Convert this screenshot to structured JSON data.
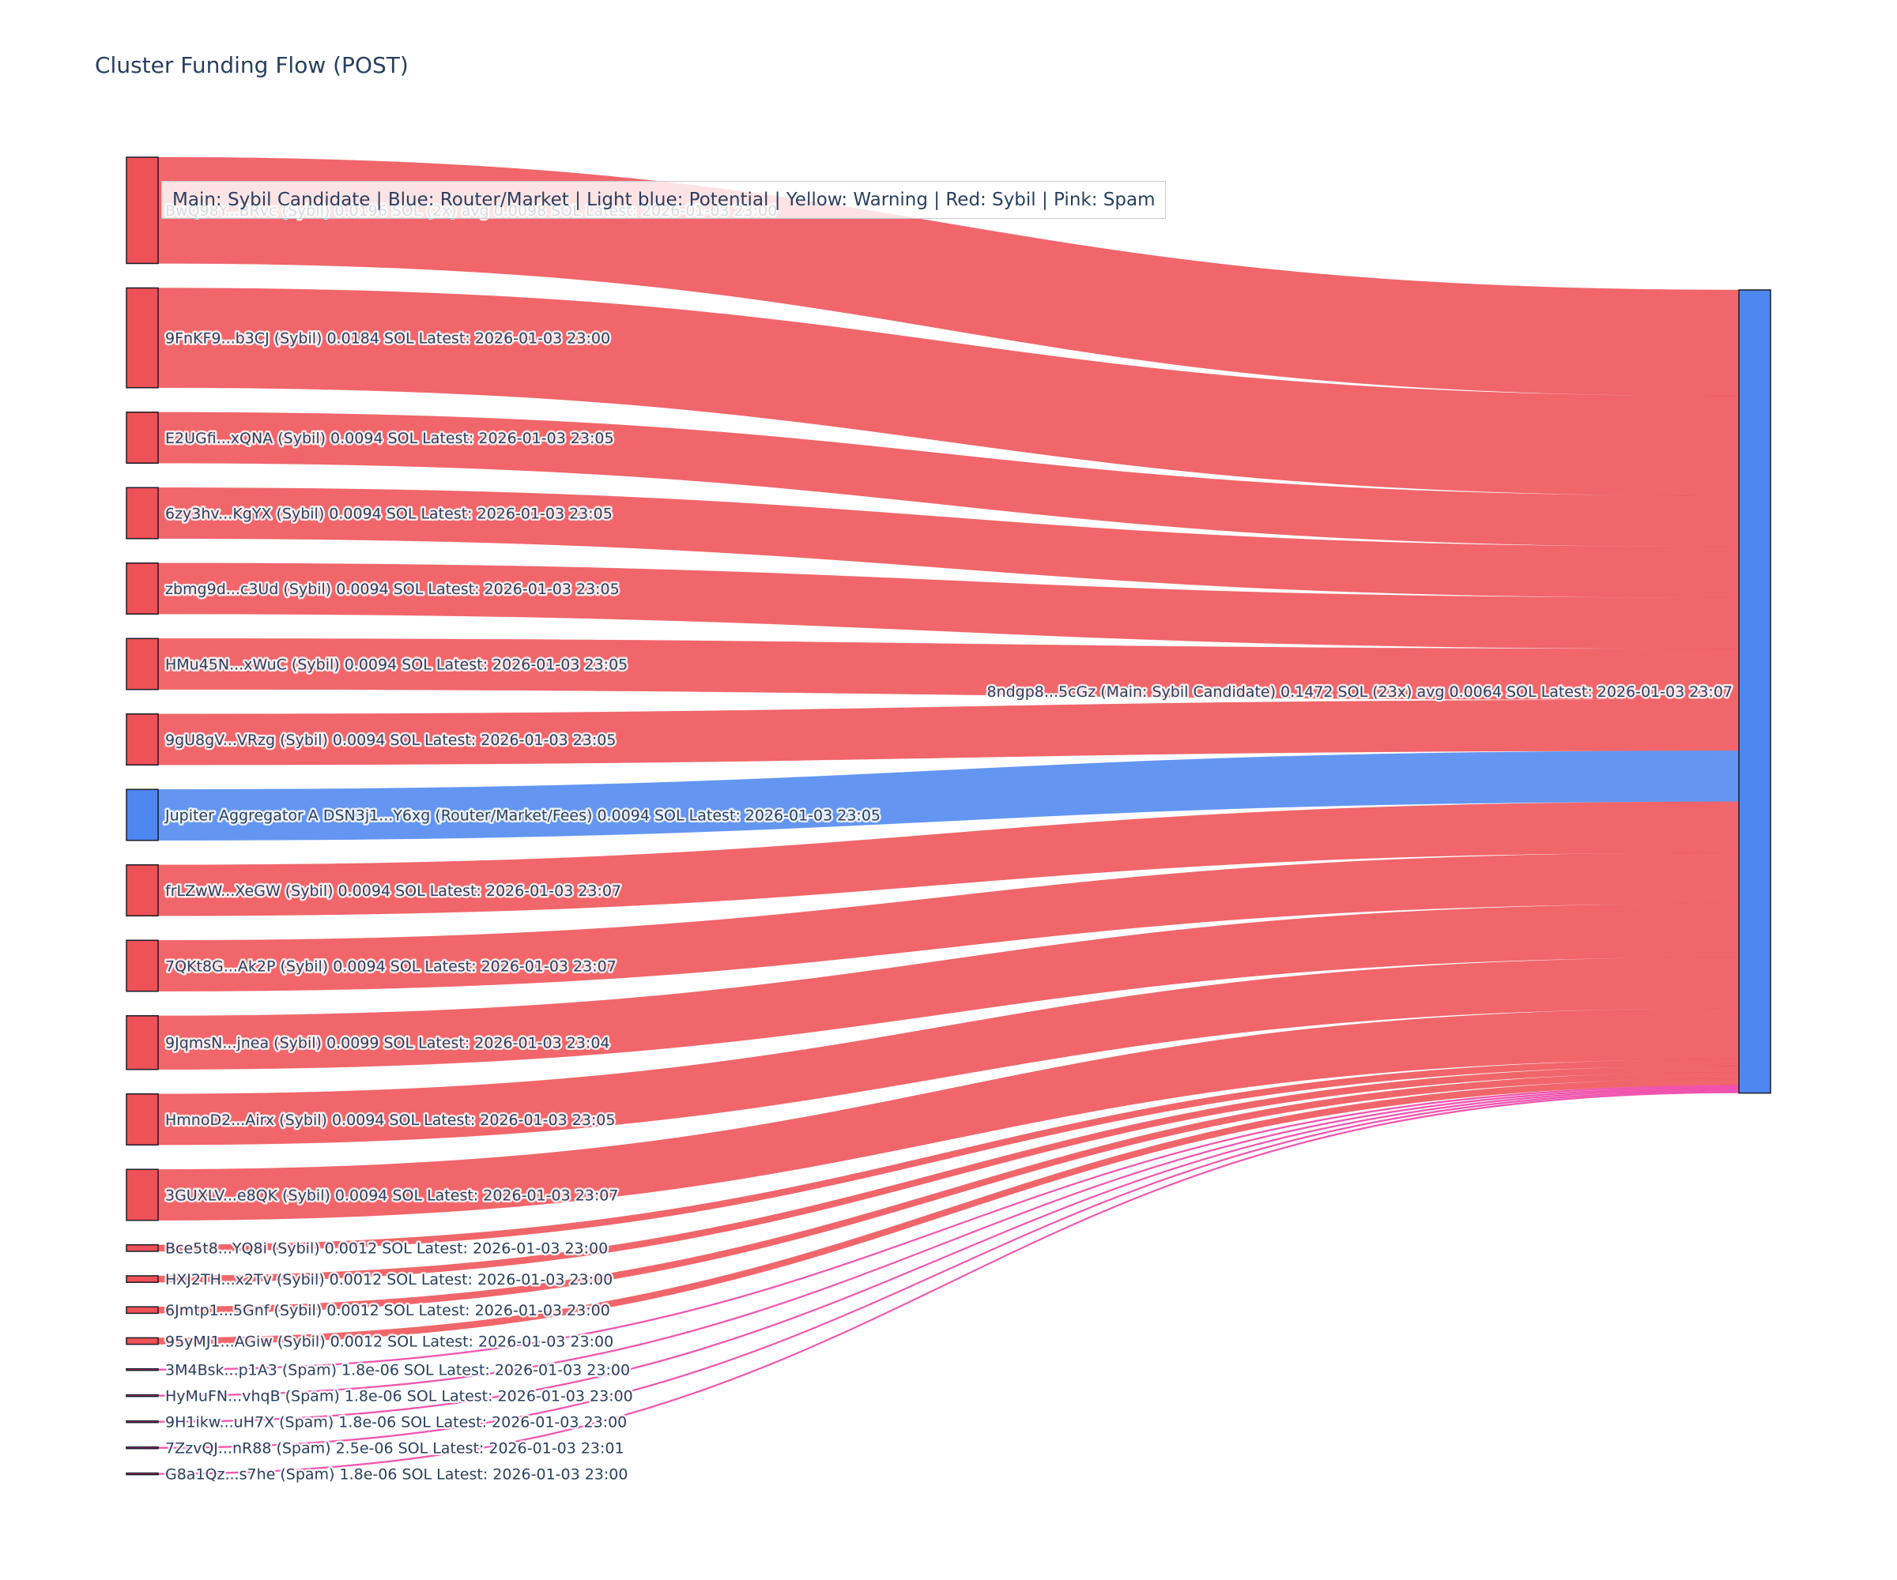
{
  "title": "Cluster Funding Flow (POST)",
  "legend_note": "Main: Sybil Candidate  |  Blue: Router/Market | Light blue: Potential | Yellow: Warning | Red: Sybil | Pink: Spam",
  "colors": {
    "sybil": "#ee5157",
    "router": "#4e87ef",
    "main": "#4e87ef",
    "spam": "#ee3da4",
    "node_border": "#1c1c27",
    "label_text": "#2a3f5f",
    "label_halo": "rgba(255,255,255,0.85)"
  },
  "chart_data": {
    "type": "sankey",
    "unit": "SOL",
    "orientation": "left-to-right",
    "target": {
      "label": "8ndgp8...5cGz (Main: Sybil Candidate) 0.1472 SOL (23x) avg 0.0064 SOL Latest: 2026-01-03 23:07",
      "id": "8ndgp8...5cGz",
      "category": "main",
      "value": 0.1472,
      "tx_count": "23x",
      "avg": "0.0064 SOL",
      "latest": "2026-01-03 23:07"
    },
    "sources": [
      {
        "label": "BwQ98Y...BRvc (Sybil) 0.0196 SOL (2x) avg 0.0098 SOL Latest: 2026-01-03 23:00",
        "category": "sybil",
        "value": 0.0196
      },
      {
        "label": "9FnKF9...b3CJ (Sybil) 0.0184 SOL Latest: 2026-01-03 23:00",
        "category": "sybil",
        "value": 0.0184
      },
      {
        "label": "E2UGfi...xQNA (Sybil) 0.0094 SOL Latest: 2026-01-03 23:05",
        "category": "sybil",
        "value": 0.0094
      },
      {
        "label": "6zy3hv...KgYX (Sybil) 0.0094 SOL Latest: 2026-01-03 23:05",
        "category": "sybil",
        "value": 0.0094
      },
      {
        "label": "zbmg9d...c3Ud (Sybil) 0.0094 SOL Latest: 2026-01-03 23:05",
        "category": "sybil",
        "value": 0.0094
      },
      {
        "label": "HMu45N...xWuC (Sybil) 0.0094 SOL Latest: 2026-01-03 23:05",
        "category": "sybil",
        "value": 0.0094
      },
      {
        "label": "9gU8gV...VRzg (Sybil) 0.0094 SOL Latest: 2026-01-03 23:05",
        "category": "sybil",
        "value": 0.0094
      },
      {
        "label": "Jupiter Aggregator A DSN3j1...Y6xg (Router/Market/Fees) 0.0094 SOL Latest: 2026-01-03 23:05",
        "category": "router",
        "value": 0.0094
      },
      {
        "label": "frLZwW...XeGW (Sybil) 0.0094 SOL Latest: 2026-01-03 23:07",
        "category": "sybil",
        "value": 0.0094
      },
      {
        "label": "7QKt8G...Ak2P (Sybil) 0.0094 SOL Latest: 2026-01-03 23:07",
        "category": "sybil",
        "value": 0.0094
      },
      {
        "label": "9JqmsN...jnea (Sybil) 0.0099 SOL Latest: 2026-01-03 23:04",
        "category": "sybil",
        "value": 0.0099
      },
      {
        "label": "HmnoD2...Airx (Sybil) 0.0094 SOL Latest: 2026-01-03 23:05",
        "category": "sybil",
        "value": 0.0094
      },
      {
        "label": "3GUXLV...e8QK (Sybil) 0.0094 SOL Latest: 2026-01-03 23:07",
        "category": "sybil",
        "value": 0.0094
      },
      {
        "label": "Bce5t8...YQ8i (Sybil) 0.0012 SOL Latest: 2026-01-03 23:00",
        "category": "sybil",
        "value": 0.0012
      },
      {
        "label": "HXJ2TH...x2Tv (Sybil) 0.0012 SOL Latest: 2026-01-03 23:00",
        "category": "sybil",
        "value": 0.0012
      },
      {
        "label": "6Jmtp1...5Gnf (Sybil) 0.0012 SOL Latest: 2026-01-03 23:00",
        "category": "sybil",
        "value": 0.0012
      },
      {
        "label": "95yMJ1...AGiw (Sybil) 0.0012 SOL Latest: 2026-01-03 23:00",
        "category": "sybil",
        "value": 0.0012
      },
      {
        "label": "3M4Bsk...p1A3 (Spam) 1.8e-06 SOL Latest: 2026-01-03 23:00",
        "category": "spam",
        "value": 1.8e-06
      },
      {
        "label": "HyMuFN...vhqB (Spam) 1.8e-06 SOL Latest: 2026-01-03 23:00",
        "category": "spam",
        "value": 1.8e-06
      },
      {
        "label": "9H1ikw...uH7X (Spam) 1.8e-06 SOL Latest: 2026-01-03 23:00",
        "category": "spam",
        "value": 1.8e-06
      },
      {
        "label": "7ZzvQJ...nR88 (Spam) 2.5e-06 SOL Latest: 2026-01-03 23:01",
        "category": "spam",
        "value": 2.5e-06
      },
      {
        "label": "G8a1Qz...s7he (Spam) 1.8e-06 SOL Latest: 2026-01-03 23:00",
        "category": "spam",
        "value": 1.8e-06
      }
    ]
  }
}
